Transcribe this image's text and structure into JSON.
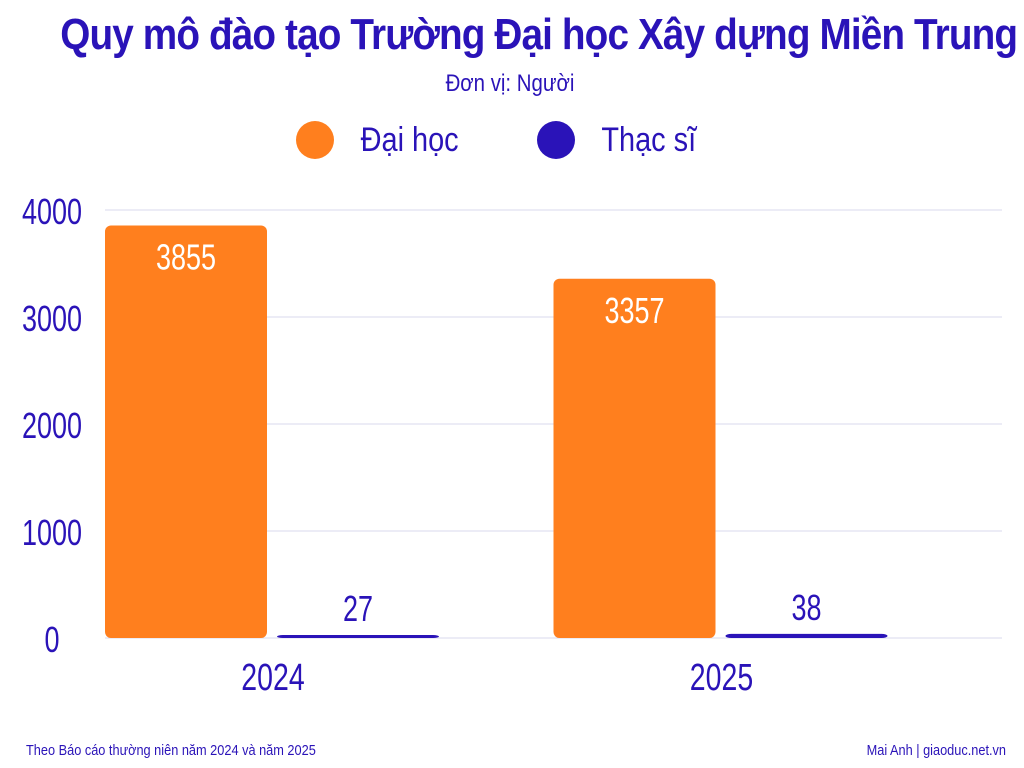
{
  "chart_data": {
    "type": "bar",
    "title": "Quy mô đào tạo Trường Đại học Xây dựng Miền Trung",
    "subtitle": "Đơn vị: Người",
    "categories": [
      "2024",
      "2025"
    ],
    "series": [
      {
        "name": "Đại học",
        "values": [
          3855,
          3357
        ],
        "color": "#ff7f1e"
      },
      {
        "name": "Thạc sĩ",
        "values": [
          27,
          38
        ],
        "color": "#2a13b8"
      }
    ],
    "yticks": [
      "0",
      "1000",
      "2000",
      "3000",
      "4000"
    ],
    "ylim": [
      0,
      4000
    ],
    "grid": true,
    "legend_position": "top-center"
  },
  "footer": {
    "source": "Theo Báo cáo thường niên năm 2024 và năm 2025",
    "credit": "Mai Anh | giaoduc.net.vn"
  },
  "colors": {
    "text": "#2a13b8",
    "grid": "#d9d9ec"
  }
}
